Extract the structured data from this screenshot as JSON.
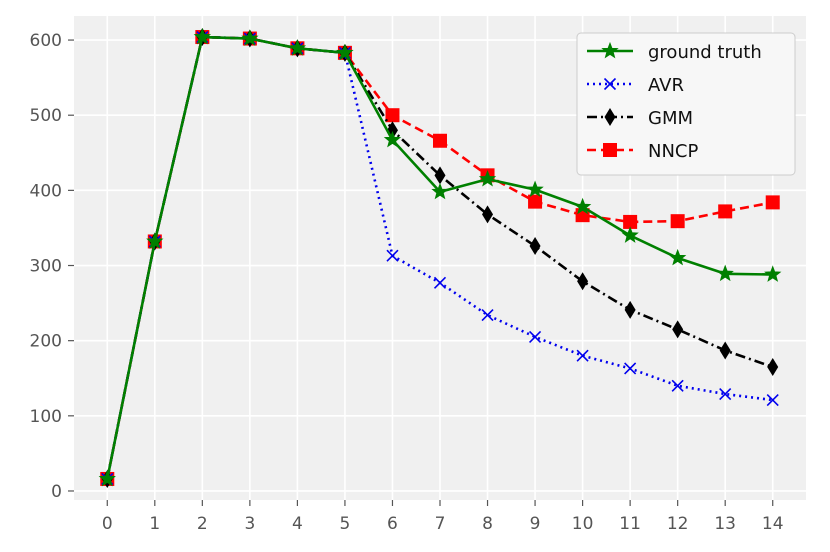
{
  "chart_data": {
    "type": "line",
    "title": "",
    "xlabel": "",
    "ylabel": "",
    "x": [
      0,
      1,
      2,
      3,
      4,
      5,
      6,
      7,
      8,
      9,
      10,
      11,
      12,
      13,
      14
    ],
    "xlim": [
      -0.7,
      14.7
    ],
    "ylim": [
      -12,
      632
    ],
    "xticks": [
      0,
      1,
      2,
      3,
      4,
      5,
      6,
      7,
      8,
      9,
      10,
      11,
      12,
      13,
      14
    ],
    "yticks": [
      0,
      100,
      200,
      300,
      400,
      500,
      600
    ],
    "grid": true,
    "legend": "top-right",
    "background": "#f0f0f0",
    "series": [
      {
        "name": "ground truth",
        "color": "#008000",
        "line": "solid",
        "marker": "star",
        "values": [
          16,
          332,
          604,
          602,
          589,
          583,
          467,
          398,
          415,
          401,
          378,
          340,
          310,
          289,
          288
        ]
      },
      {
        "name": "AVR",
        "color": "#0000ee",
        "line": "dotted",
        "marker": "x",
        "values": [
          16,
          332,
          604,
          602,
          589,
          583,
          313,
          277,
          234,
          205,
          180,
          163,
          140,
          129,
          121
        ]
      },
      {
        "name": "GMM",
        "color": "#000000",
        "line": "dashdot",
        "marker": "thin-diamond",
        "values": [
          16,
          332,
          604,
          602,
          589,
          583,
          480,
          420,
          368,
          326,
          279,
          241,
          215,
          187,
          165
        ]
      },
      {
        "name": "NNCP",
        "color": "#ff0000",
        "line": "dashed",
        "marker": "square",
        "values": [
          16,
          332,
          604,
          602,
          589,
          583,
          500,
          466,
          420,
          385,
          367,
          358,
          359,
          372,
          384
        ]
      }
    ]
  }
}
